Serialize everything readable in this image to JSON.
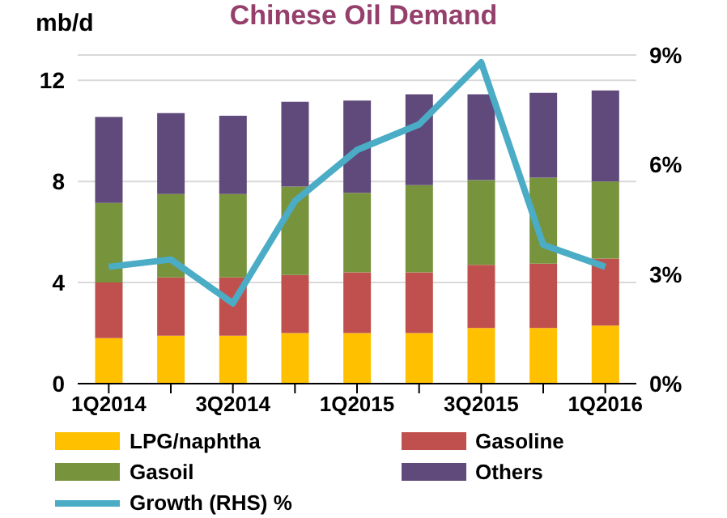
{
  "chart_data": {
    "type": "bar",
    "title": "Chinese Oil Demand",
    "ylabel": "mb/d",
    "stacked": true,
    "categories": [
      "1Q2014",
      null,
      "3Q2014",
      null,
      "1Q2015",
      null,
      "3Q2015",
      null,
      "1Q2016"
    ],
    "series": [
      {
        "name": "LPG/naphtha",
        "color": "#ffc000",
        "values": [
          1.8,
          1.9,
          1.9,
          2.0,
          2.0,
          2.0,
          2.2,
          2.2,
          2.3
        ]
      },
      {
        "name": "Gasoline",
        "color": "#c0504d",
        "values": [
          2.2,
          2.3,
          2.3,
          2.3,
          2.4,
          2.4,
          2.5,
          2.55,
          2.65
        ]
      },
      {
        "name": "Gasoil",
        "color": "#77933c",
        "values": [
          3.15,
          3.3,
          3.3,
          3.5,
          3.15,
          3.45,
          3.35,
          3.4,
          3.05
        ]
      },
      {
        "name": "Others",
        "color": "#604a7b",
        "values": [
          3.4,
          3.2,
          3.1,
          3.35,
          3.65,
          3.6,
          3.4,
          3.35,
          3.6
        ]
      },
      {
        "name": "Growth (RHS) %",
        "type": "line",
        "axis": "y2",
        "color": "#4bacc6",
        "values": [
          3.2,
          3.4,
          2.2,
          5.0,
          6.4,
          7.1,
          8.8,
          3.8,
          3.2
        ]
      }
    ],
    "ylim": [
      0,
      13
    ],
    "yticks": [
      0,
      4,
      8,
      12
    ],
    "y2lim": [
      0,
      9
    ],
    "y2ticks": [
      {
        "value": 0,
        "label": "0%"
      },
      {
        "value": 3,
        "label": "3%"
      },
      {
        "value": 6,
        "label": "6%"
      },
      {
        "value": 9,
        "label": "9%"
      }
    ],
    "grid": "y",
    "legend": "bottom",
    "marker": "none"
  }
}
